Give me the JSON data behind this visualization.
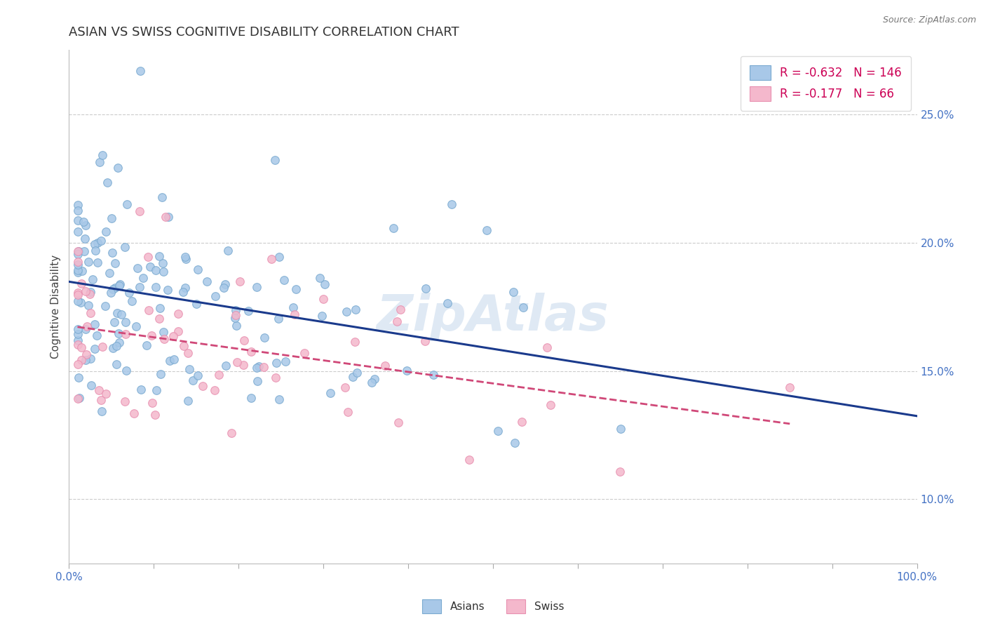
{
  "title": "ASIAN VS SWISS COGNITIVE DISABILITY CORRELATION CHART",
  "source_text": "Source: ZipAtlas.com",
  "ylabel": "Cognitive Disability",
  "xlim": [
    0.0,
    1.0
  ],
  "ylim": [
    0.075,
    0.275
  ],
  "x_ticks": [
    0.0,
    0.1,
    0.2,
    0.3,
    0.4,
    0.5,
    0.6,
    0.7,
    0.8,
    0.9,
    1.0
  ],
  "x_tick_labels": [
    "0.0%",
    "",
    "",
    "",
    "",
    "",
    "",
    "",
    "",
    "",
    "100.0%"
  ],
  "y_ticks": [
    0.1,
    0.15,
    0.2,
    0.25
  ],
  "y_tick_labels": [
    "10.0%",
    "15.0%",
    "20.0%",
    "25.0%"
  ],
  "asian_color": "#a8c8e8",
  "swiss_color": "#f4b8cc",
  "asian_edge_color": "#7aaad0",
  "swiss_edge_color": "#e890b0",
  "asian_line_color": "#1a3a8c",
  "swiss_line_color": "#d04878",
  "R_asian": -0.632,
  "N_asian": 146,
  "R_swiss": -0.177,
  "N_swiss": 66,
  "watermark": "ZipAtlas",
  "legend_r_color": "#cc0055",
  "tick_color": "#4472c4",
  "title_color": "#333333",
  "source_color": "#777777"
}
